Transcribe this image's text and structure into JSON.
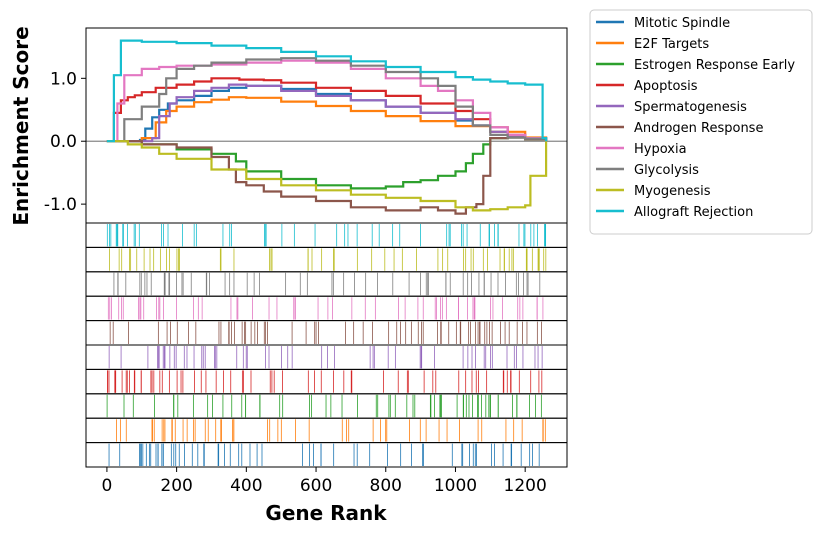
{
  "chart_data": {
    "type": "line",
    "title": "",
    "xlabel": "Gene Rank",
    "ylabel": "Enrichment Score",
    "xlim": [
      -60,
      1320
    ],
    "ylim": [
      -1.3,
      1.8
    ],
    "x_ticks": [
      0,
      200,
      400,
      600,
      800,
      1000,
      1200
    ],
    "y_ticks": [
      -1.0,
      0.0,
      1.0
    ],
    "x_tick_labels": [
      "0",
      "200",
      "400",
      "600",
      "800",
      "1000",
      "1200"
    ],
    "y_tick_labels": [
      "-1.0",
      "0.0",
      "1.0"
    ],
    "zero_line": true,
    "legend_position": "outside-top-right",
    "series": [
      {
        "name": "Mitotic Spindle",
        "color": "#1f77b4",
        "x": [
          0,
          95,
          110,
          130,
          150,
          175,
          200,
          250,
          300,
          350,
          400,
          500,
          600,
          700,
          800,
          900,
          1000,
          1050,
          1100,
          1150,
          1200,
          1260
        ],
        "y": [
          0,
          0.02,
          0.2,
          0.38,
          0.5,
          0.6,
          0.65,
          0.72,
          0.8,
          0.85,
          0.88,
          0.83,
          0.75,
          0.65,
          0.55,
          0.45,
          0.33,
          0.25,
          0.15,
          0.08,
          0.05,
          0
        ]
      },
      {
        "name": "E2F Targets",
        "color": "#ff7f0e",
        "x": [
          0,
          100,
          140,
          170,
          200,
          250,
          300,
          350,
          400,
          500,
          600,
          700,
          800,
          900,
          1000,
          1100,
          1200,
          1260
        ],
        "y": [
          0,
          0.05,
          0.3,
          0.48,
          0.55,
          0.62,
          0.66,
          0.7,
          0.69,
          0.63,
          0.56,
          0.48,
          0.4,
          0.32,
          0.24,
          0.15,
          0.06,
          0
        ]
      },
      {
        "name": "Estrogen Response Early",
        "color": "#2ca02c",
        "x": [
          0,
          100,
          200,
          300,
          370,
          400,
          500,
          600,
          700,
          800,
          850,
          900,
          950,
          1000,
          1030,
          1050,
          1080,
          1100,
          1150,
          1200,
          1260
        ],
        "y": [
          0,
          -0.05,
          -0.13,
          -0.2,
          -0.32,
          -0.48,
          -0.6,
          -0.7,
          -0.75,
          -0.72,
          -0.65,
          -0.62,
          -0.55,
          -0.48,
          -0.35,
          -0.2,
          -0.05,
          0.05,
          0.06,
          0.03,
          0
        ]
      },
      {
        "name": "Apoptosis",
        "color": "#d62728",
        "x": [
          0,
          20,
          40,
          60,
          80,
          100,
          140,
          200,
          250,
          300,
          380,
          450,
          500,
          600,
          700,
          800,
          900,
          1000,
          1050,
          1100,
          1150,
          1200,
          1260
        ],
        "y": [
          0,
          0.45,
          0.65,
          0.7,
          0.73,
          0.78,
          0.85,
          0.9,
          0.95,
          1.0,
          0.98,
          0.97,
          0.93,
          0.85,
          0.8,
          0.72,
          0.6,
          0.48,
          0.35,
          0.22,
          0.1,
          0.05,
          0
        ]
      },
      {
        "name": "Spermatogenesis",
        "color": "#9467bd",
        "x": [
          0,
          130,
          150,
          180,
          200,
          250,
          300,
          350,
          400,
          500,
          600,
          700,
          800,
          900,
          1000,
          1050,
          1100,
          1150,
          1200,
          1260
        ],
        "y": [
          0,
          0.05,
          0.4,
          0.6,
          0.7,
          0.8,
          0.85,
          0.9,
          0.88,
          0.8,
          0.72,
          0.65,
          0.55,
          0.45,
          0.35,
          0.25,
          0.15,
          0.08,
          0.05,
          0
        ]
      },
      {
        "name": "Androgen Response",
        "color": "#8c564b",
        "x": [
          0,
          100,
          200,
          300,
          350,
          370,
          400,
          450,
          500,
          600,
          700,
          800,
          850,
          900,
          950,
          1000,
          1030,
          1060,
          1080,
          1100,
          1150,
          1200,
          1260
        ],
        "y": [
          0,
          -0.05,
          -0.1,
          -0.25,
          -0.45,
          -0.65,
          -0.7,
          -0.8,
          -0.88,
          -0.95,
          -1.05,
          -1.1,
          -1.1,
          -1.05,
          -1.1,
          -1.15,
          -1.05,
          -1.0,
          -0.55,
          0.05,
          0.06,
          0.03,
          0
        ]
      },
      {
        "name": "Hypoxia",
        "color": "#e377c2",
        "x": [
          0,
          30,
          50,
          100,
          150,
          200,
          300,
          400,
          500,
          600,
          700,
          800,
          900,
          950,
          1000,
          1050,
          1100,
          1150,
          1200,
          1260
        ],
        "y": [
          0,
          0.6,
          1.05,
          1.15,
          1.18,
          1.2,
          1.22,
          1.25,
          1.28,
          1.25,
          1.15,
          1.0,
          0.88,
          0.8,
          0.65,
          0.45,
          0.22,
          0.1,
          0.05,
          0
        ]
      },
      {
        "name": "Glycolysis",
        "color": "#7f7f7f",
        "x": [
          0,
          50,
          100,
          150,
          170,
          200,
          250,
          300,
          400,
          500,
          600,
          700,
          800,
          900,
          950,
          1000,
          1050,
          1100,
          1150,
          1200,
          1260
        ],
        "y": [
          0,
          0.35,
          0.55,
          0.75,
          1.0,
          1.15,
          1.2,
          1.25,
          1.3,
          1.32,
          1.28,
          1.2,
          1.1,
          1.0,
          0.88,
          0.55,
          0.25,
          0.1,
          0.06,
          0.04,
          0
        ]
      },
      {
        "name": "Myogenesis",
        "color": "#bcbd22",
        "x": [
          0,
          60,
          100,
          150,
          200,
          300,
          400,
          500,
          600,
          700,
          800,
          900,
          1000,
          1050,
          1100,
          1150,
          1200,
          1215,
          1240,
          1260
        ],
        "y": [
          0,
          -0.05,
          -0.1,
          -0.2,
          -0.28,
          -0.45,
          -0.6,
          -0.7,
          -0.78,
          -0.85,
          -0.9,
          -0.95,
          -1.05,
          -1.1,
          -1.08,
          -1.05,
          -1.02,
          -0.55,
          -0.55,
          0
        ]
      },
      {
        "name": "Allograft Rejection",
        "color": "#17becf",
        "x": [
          0,
          20,
          40,
          60,
          100,
          200,
          300,
          400,
          500,
          600,
          700,
          800,
          900,
          1000,
          1050,
          1100,
          1150,
          1200,
          1250,
          1260
        ],
        "y": [
          0,
          1.05,
          1.6,
          1.6,
          1.58,
          1.56,
          1.52,
          1.48,
          1.42,
          1.35,
          1.27,
          1.18,
          1.1,
          1.02,
          0.98,
          0.95,
          0.92,
          0.9,
          0.05,
          0
        ]
      }
    ]
  }
}
